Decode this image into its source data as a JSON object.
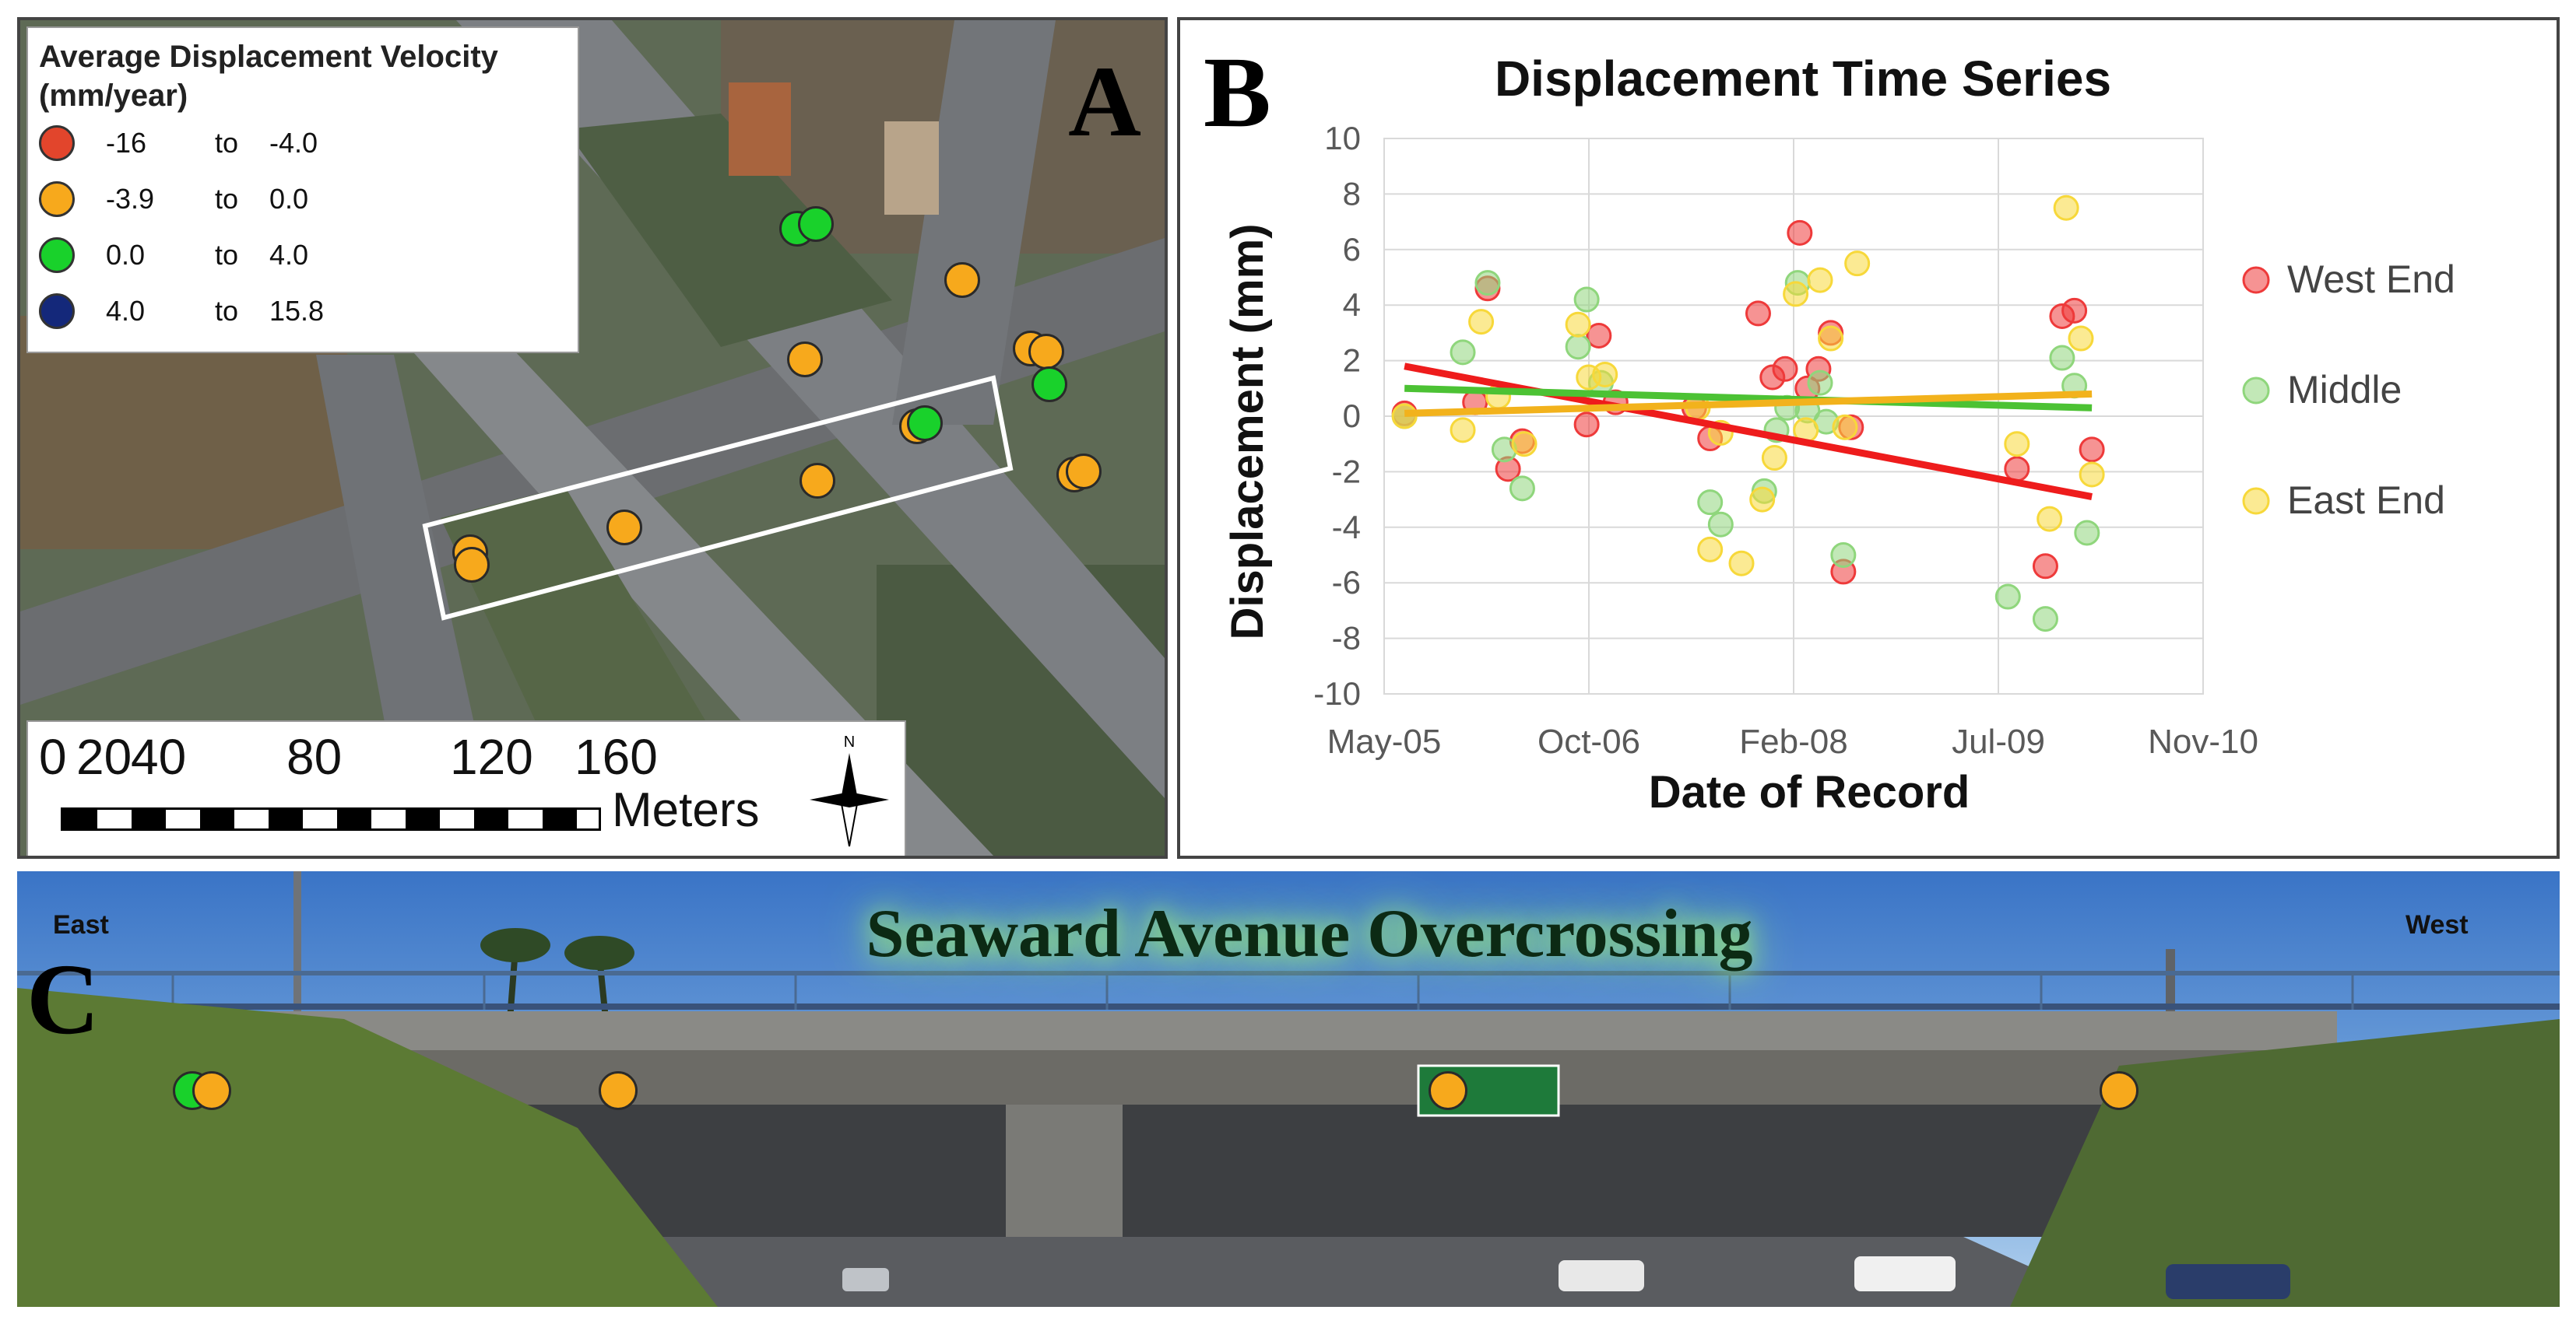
{
  "panel_a": {
    "letter": "A",
    "legend": {
      "title": "Average Displacement Velocity (mm/year)",
      "classes": [
        {
          "range_from": "-16",
          "to_word": "to",
          "range_to": "-4.0",
          "color": "#e2452c"
        },
        {
          "range_from": "-3.9",
          "to_word": "to",
          "range_to": "0.0",
          "color": "#f7a91c"
        },
        {
          "range_from": "0.0",
          "to_word": "to",
          "range_to": "4.0",
          "color": "#19d12b"
        },
        {
          "range_from": "4.0",
          "to_word": "to",
          "range_to": "15.8",
          "color": "#14287a"
        }
      ]
    },
    "scale_bar": {
      "ticks": [
        "0",
        "20",
        "40",
        "80",
        "120",
        "160"
      ],
      "units": "Meters",
      "north": "N"
    }
  },
  "panel_b": {
    "letter": "B",
    "chart_data": {
      "type": "scatter",
      "title": "Displacement Time Series",
      "xlabel": "Date of Record",
      "ylabel": "Displacement (mm)",
      "x_tick_labels": [
        "May-05",
        "Oct-06",
        "Feb-08",
        "Jul-09",
        "Nov-10"
      ],
      "x_range": [
        "2005-05-01",
        "2010-11-01"
      ],
      "ylim": [
        -10,
        10
      ],
      "y_ticks": [
        10,
        8,
        6,
        4,
        2,
        0,
        -2,
        -4,
        -6,
        -8,
        -10
      ],
      "grid": true,
      "legend_position": "right",
      "series": [
        {
          "name": "West End",
          "color": "#ee3a3a",
          "points": [
            [
              "2005-06-20",
              0.1
            ],
            [
              "2005-12-10",
              0.5
            ],
            [
              "2006-01-10",
              4.6
            ],
            [
              "2006-03-01",
              -1.9
            ],
            [
              "2006-04-05",
              -0.9
            ],
            [
              "2006-09-10",
              -0.3
            ],
            [
              "2006-10-10",
              2.9
            ],
            [
              "2006-11-20",
              0.5
            ],
            [
              "2007-06-01",
              0.3
            ],
            [
              "2007-07-10",
              -0.8
            ],
            [
              "2007-11-05",
              3.7
            ],
            [
              "2007-12-10",
              1.4
            ],
            [
              "2008-01-10",
              1.7
            ],
            [
              "2008-02-15",
              6.6
            ],
            [
              "2008-03-05",
              1.0
            ],
            [
              "2008-04-01",
              1.7
            ],
            [
              "2008-05-01",
              3.0
            ],
            [
              "2008-06-01",
              -5.6
            ],
            [
              "2008-06-20",
              -0.4
            ],
            [
              "2009-08-01",
              -1.9
            ],
            [
              "2009-10-10",
              -5.4
            ],
            [
              "2009-11-20",
              3.6
            ],
            [
              "2009-12-20",
              3.8
            ],
            [
              "2010-02-01",
              -1.2
            ]
          ]
        },
        {
          "name": "Middle",
          "color": "#8fd67c",
          "points": [
            [
              "2005-06-20",
              0.0
            ],
            [
              "2005-11-10",
              2.3
            ],
            [
              "2006-01-10",
              4.8
            ],
            [
              "2006-02-20",
              -1.2
            ],
            [
              "2006-04-05",
              -2.6
            ],
            [
              "2006-08-20",
              2.5
            ],
            [
              "2006-09-10",
              4.2
            ],
            [
              "2006-10-15",
              1.2
            ],
            [
              "2007-07-10",
              -3.1
            ],
            [
              "2007-08-05",
              -3.9
            ],
            [
              "2007-11-20",
              -2.7
            ],
            [
              "2007-12-20",
              -0.5
            ],
            [
              "2008-01-15",
              0.3
            ],
            [
              "2008-02-10",
              4.8
            ],
            [
              "2008-03-05",
              0.2
            ],
            [
              "2008-04-05",
              1.2
            ],
            [
              "2008-04-20",
              -0.2
            ],
            [
              "2008-06-01",
              -5.0
            ],
            [
              "2009-07-10",
              -6.5
            ],
            [
              "2009-10-10",
              -7.3
            ],
            [
              "2009-11-20",
              2.1
            ],
            [
              "2009-12-20",
              1.1
            ],
            [
              "2010-01-20",
              -4.2
            ]
          ]
        },
        {
          "name": "East End",
          "color": "#f7d83a",
          "points": [
            [
              "2005-06-20",
              0.0
            ],
            [
              "2005-11-10",
              -0.5
            ],
            [
              "2005-12-25",
              3.4
            ],
            [
              "2006-02-05",
              0.7
            ],
            [
              "2006-04-10",
              -1.0
            ],
            [
              "2006-08-20",
              3.3
            ],
            [
              "2006-09-15",
              1.4
            ],
            [
              "2006-10-25",
              1.5
            ],
            [
              "2007-06-10",
              0.3
            ],
            [
              "2007-07-10",
              -4.8
            ],
            [
              "2007-08-05",
              -0.6
            ],
            [
              "2007-09-25",
              -5.3
            ],
            [
              "2007-11-15",
              -3.0
            ],
            [
              "2007-12-15",
              -1.5
            ],
            [
              "2008-02-05",
              4.4
            ],
            [
              "2008-03-01",
              -0.5
            ],
            [
              "2008-04-05",
              4.9
            ],
            [
              "2008-05-01",
              2.8
            ],
            [
              "2008-06-05",
              -0.4
            ],
            [
              "2008-07-05",
              5.5
            ],
            [
              "2009-08-01",
              -1.0
            ],
            [
              "2009-10-20",
              -3.7
            ],
            [
              "2009-11-30",
              7.5
            ],
            [
              "2010-01-05",
              2.8
            ],
            [
              "2010-02-01",
              -2.1
            ]
          ]
        }
      ],
      "trendlines": [
        {
          "series": "West End",
          "color": "#ee1c1c",
          "from": [
            "2005-06-20",
            1.8
          ],
          "to": [
            "2010-02-01",
            -2.9
          ]
        },
        {
          "series": "Middle",
          "color": "#4cc234",
          "from": [
            "2005-06-20",
            1.0
          ],
          "to": [
            "2010-02-01",
            0.3
          ]
        },
        {
          "series": "East End",
          "color": "#f2b21c",
          "from": [
            "2005-06-20",
            0.1
          ],
          "to": [
            "2010-02-01",
            0.8
          ]
        }
      ]
    }
  },
  "panel_c": {
    "letter": "C",
    "title": "Seaward Avenue Overcrossing",
    "label_east": "East",
    "label_west": "West"
  }
}
